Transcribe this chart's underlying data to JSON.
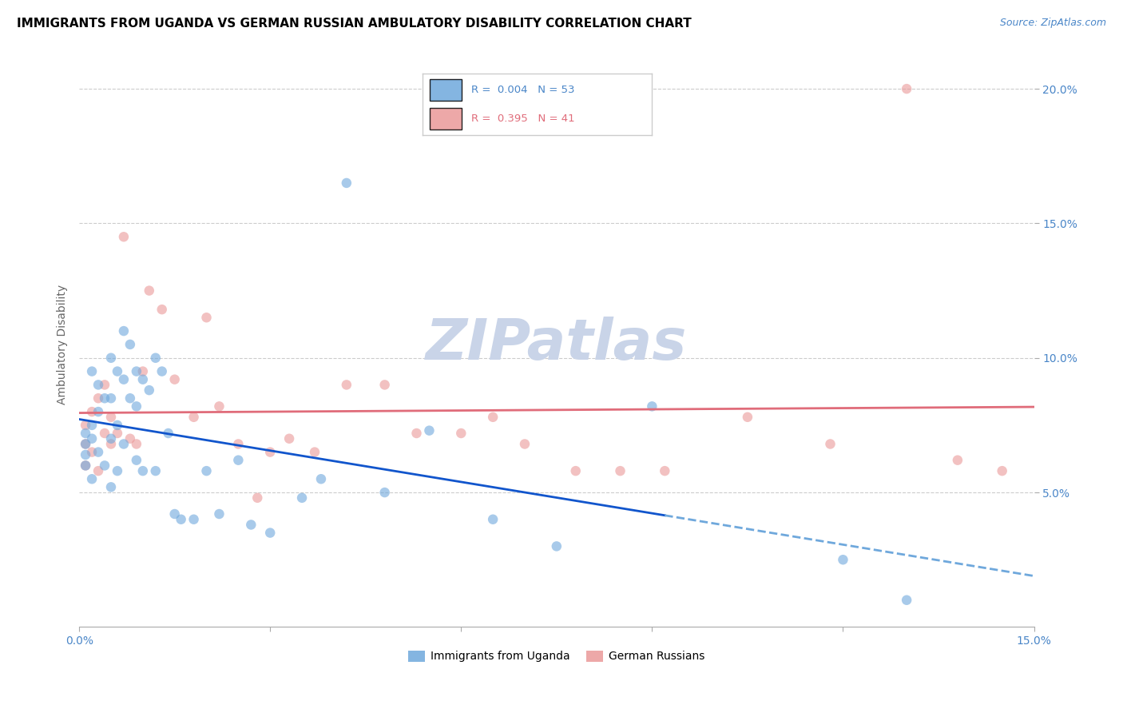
{
  "title": "IMMIGRANTS FROM UGANDA VS GERMAN RUSSIAN AMBULATORY DISABILITY CORRELATION CHART",
  "source": "Source: ZipAtlas.com",
  "ylabel": "Ambulatory Disability",
  "xmin": 0.0,
  "xmax": 0.15,
  "ymin": 0.0,
  "ymax": 0.21,
  "yticks": [
    0.05,
    0.1,
    0.15,
    0.2
  ],
  "ytick_labels": [
    "5.0%",
    "10.0%",
    "15.0%",
    "20.0%"
  ],
  "xticks": [
    0.0,
    0.03,
    0.06,
    0.09,
    0.12,
    0.15
  ],
  "watermark": "ZIPatlas",
  "series1_color": "#6fa8dc",
  "series2_color": "#ea9999",
  "series1_line_color": "#1155cc",
  "series2_line_color": "#e06c7a",
  "series1_label": "Immigrants from Uganda",
  "series2_label": "German Russians",
  "uganda_R": 0.004,
  "german_R": 0.395,
  "uganda_N": 53,
  "german_N": 41,
  "uganda_x": [
    0.001,
    0.001,
    0.001,
    0.001,
    0.002,
    0.002,
    0.002,
    0.002,
    0.003,
    0.003,
    0.003,
    0.004,
    0.004,
    0.005,
    0.005,
    0.005,
    0.005,
    0.006,
    0.006,
    0.006,
    0.007,
    0.007,
    0.007,
    0.008,
    0.008,
    0.009,
    0.009,
    0.009,
    0.01,
    0.01,
    0.011,
    0.012,
    0.012,
    0.013,
    0.014,
    0.015,
    0.016,
    0.018,
    0.02,
    0.022,
    0.025,
    0.027,
    0.03,
    0.035,
    0.038,
    0.042,
    0.048,
    0.055,
    0.065,
    0.075,
    0.09,
    0.12,
    0.13
  ],
  "uganda_y": [
    0.072,
    0.068,
    0.064,
    0.06,
    0.095,
    0.075,
    0.07,
    0.055,
    0.09,
    0.08,
    0.065,
    0.085,
    0.06,
    0.1,
    0.085,
    0.07,
    0.052,
    0.095,
    0.075,
    0.058,
    0.11,
    0.092,
    0.068,
    0.105,
    0.085,
    0.095,
    0.082,
    0.062,
    0.092,
    0.058,
    0.088,
    0.1,
    0.058,
    0.095,
    0.072,
    0.042,
    0.04,
    0.04,
    0.058,
    0.042,
    0.062,
    0.038,
    0.035,
    0.048,
    0.055,
    0.165,
    0.05,
    0.073,
    0.04,
    0.03,
    0.082,
    0.025,
    0.01
  ],
  "german_x": [
    0.001,
    0.001,
    0.001,
    0.002,
    0.002,
    0.003,
    0.003,
    0.004,
    0.004,
    0.005,
    0.005,
    0.006,
    0.007,
    0.008,
    0.009,
    0.01,
    0.011,
    0.013,
    0.015,
    0.018,
    0.02,
    0.022,
    0.025,
    0.028,
    0.03,
    0.033,
    0.037,
    0.042,
    0.048,
    0.053,
    0.06,
    0.065,
    0.07,
    0.078,
    0.085,
    0.092,
    0.105,
    0.118,
    0.13,
    0.138,
    0.145
  ],
  "german_y": [
    0.075,
    0.068,
    0.06,
    0.08,
    0.065,
    0.085,
    0.058,
    0.09,
    0.072,
    0.078,
    0.068,
    0.072,
    0.145,
    0.07,
    0.068,
    0.095,
    0.125,
    0.118,
    0.092,
    0.078,
    0.115,
    0.082,
    0.068,
    0.048,
    0.065,
    0.07,
    0.065,
    0.09,
    0.09,
    0.072,
    0.072,
    0.078,
    0.068,
    0.058,
    0.058,
    0.058,
    0.078,
    0.068,
    0.2,
    0.062,
    0.058
  ],
  "background_color": "#ffffff",
  "grid_color": "#cccccc",
  "title_color": "#000000",
  "label_color": "#4a86c8",
  "title_fontsize": 11,
  "source_fontsize": 9,
  "tick_fontsize": 10,
  "ylabel_fontsize": 10,
  "watermark_color": "#c9d4e8",
  "watermark_fontsize": 52,
  "marker_size": 9,
  "marker_alpha": 0.6,
  "line_width": 2.0,
  "uganda_line_solid_end": 0.092,
  "dashed_line_color": "#6fa8dc"
}
